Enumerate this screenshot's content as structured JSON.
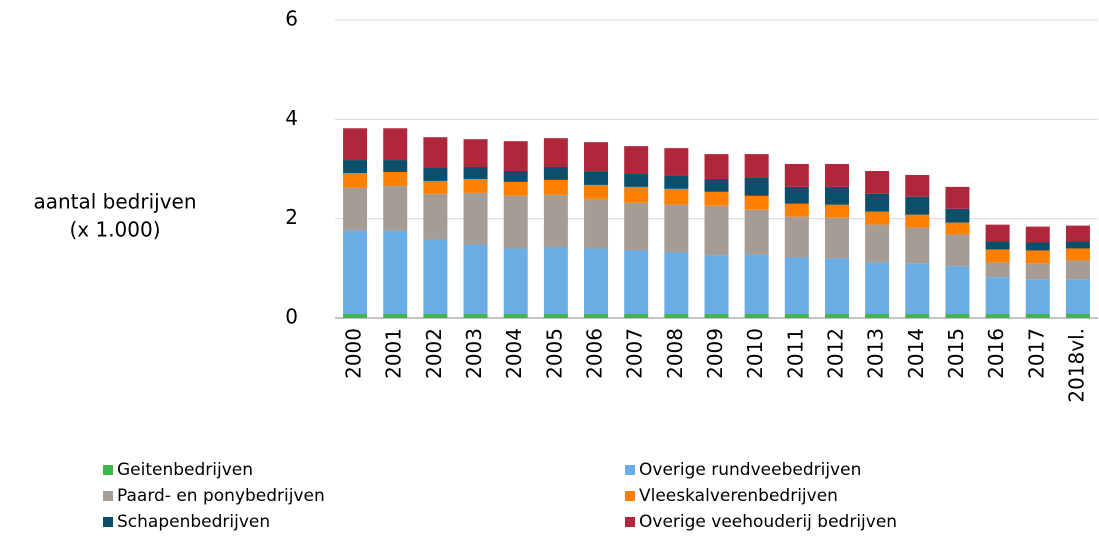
{
  "chart_data": {
    "type": "stacked_bar",
    "ylabel": [
      "aantal bedrijven",
      "(x 1.000)"
    ],
    "categories": [
      "2000",
      "2001",
      "2002",
      "2003",
      "2004",
      "2005",
      "2006",
      "2007",
      "2008",
      "2009",
      "2010",
      "2011",
      "2012",
      "2013",
      "2014",
      "2015",
      "2016",
      "2017",
      "2018vl."
    ],
    "series": [
      {
        "name": "Geitenbedrijven",
        "color": "#3cb54a",
        "values": [
          0.08,
          0.08,
          0.08,
          0.08,
          0.08,
          0.08,
          0.08,
          0.08,
          0.08,
          0.08,
          0.08,
          0.08,
          0.08,
          0.08,
          0.08,
          0.08,
          0.08,
          0.08,
          0.08
        ]
      },
      {
        "name": "Overige rundveebedrijven",
        "color": "#6aade4",
        "values": [
          1.68,
          1.68,
          1.5,
          1.4,
          1.32,
          1.34,
          1.32,
          1.28,
          1.24,
          1.18,
          1.2,
          1.14,
          1.12,
          1.04,
          1.02,
          0.96,
          0.74,
          0.7,
          0.7
        ]
      },
      {
        "name": "Paard- en ponybedrijven",
        "color": "#a59d95",
        "values": [
          0.86,
          0.9,
          0.92,
          1.04,
          1.06,
          1.06,
          1.0,
          0.96,
          0.96,
          1.0,
          0.9,
          0.82,
          0.82,
          0.76,
          0.72,
          0.64,
          0.3,
          0.32,
          0.38
        ]
      },
      {
        "name": "Vleeskalverenbedrijven",
        "color": "#ff7f00",
        "values": [
          0.3,
          0.28,
          0.26,
          0.28,
          0.28,
          0.3,
          0.28,
          0.32,
          0.32,
          0.28,
          0.28,
          0.26,
          0.26,
          0.26,
          0.26,
          0.24,
          0.26,
          0.26,
          0.24
        ]
      },
      {
        "name": "Schapenbedrijven",
        "color": "#0c4f6b",
        "values": [
          0.26,
          0.24,
          0.26,
          0.24,
          0.22,
          0.26,
          0.26,
          0.26,
          0.26,
          0.26,
          0.36,
          0.34,
          0.36,
          0.36,
          0.36,
          0.28,
          0.16,
          0.16,
          0.14
        ]
      },
      {
        "name": "Overige veehouderij bedrijven",
        "color": "#b0263a",
        "values": [
          0.64,
          0.64,
          0.62,
          0.56,
          0.6,
          0.58,
          0.6,
          0.56,
          0.56,
          0.5,
          0.48,
          0.46,
          0.46,
          0.46,
          0.44,
          0.44,
          0.34,
          0.32,
          0.32
        ]
      }
    ],
    "ylim": [
      0,
      6
    ],
    "yticks": [
      0,
      2,
      4,
      6
    ],
    "grid": true
  }
}
